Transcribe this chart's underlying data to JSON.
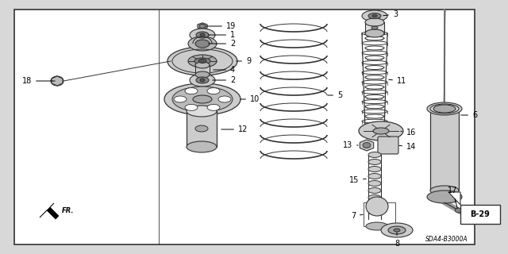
{
  "bg_color": "#ffffff",
  "line_color": "#333333",
  "fig_width": 6.4,
  "fig_height": 3.2,
  "dpi": 100,
  "corner_text": "SDA4-B3000A",
  "ref_text": "B-29",
  "outer_bg": "#d8d8d8"
}
